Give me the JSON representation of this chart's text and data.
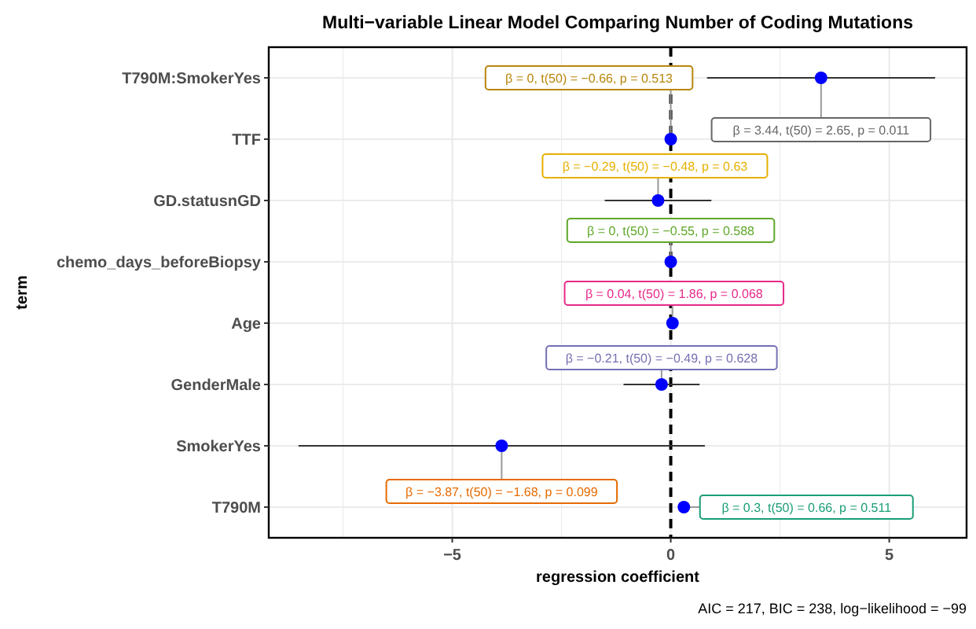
{
  "chart_data": {
    "type": "scatter",
    "title": "Multi−variable Linear Model Comparing Number of Coding Mutations",
    "xlabel": "regression coefficient",
    "ylabel": "term",
    "categories": [
      "T790M:SmokerYes",
      "TTF",
      "GD.statusnGD",
      "chemo_days_beforeBiopsy",
      "Age",
      "GenderMale",
      "SmokerYes",
      "T790M"
    ],
    "orientation": "horizontal",
    "series": [
      {
        "color": "#0000ff",
        "values": [
          3.44,
          0,
          -0.29,
          0,
          0.04,
          -0.21,
          -3.87,
          0.3
        ],
        "errors": [
          2.61,
          null,
          1.22,
          null,
          null,
          0.87,
          4.65,
          null
        ]
      }
    ],
    "xlim": [
      -9.2,
      6.77
    ],
    "xticks": [
      -5,
      0,
      5
    ],
    "grid": true,
    "marker": "circle",
    "ref_lines": [
      {
        "axis": "x",
        "value": 0,
        "line_style": "dashed",
        "color": "#000000"
      }
    ],
    "annotations": [
      {
        "text": "β = 3.44,  t(50) = 2.65,  p = 0.011",
        "x": 3.44,
        "y": "T790M:SmokerYes"
      },
      {
        "text": "β = 0,  t(50) = −0.66,  p = 0.513",
        "x": 0,
        "y": "TTF"
      },
      {
        "text": "β = −0.29,  t(50) = −0.48,  p = 0.63",
        "x": -0.29,
        "y": "GD.statusnGD"
      },
      {
        "text": "β = 0,  t(50) = −0.55,  p = 0.588",
        "x": 0,
        "y": "chemo_days_beforeBiopsy"
      },
      {
        "text": "β = 0.04,  t(50) = 1.86,  p = 0.068",
        "x": 0.04,
        "y": "Age"
      },
      {
        "text": "β = −0.21,  t(50) = −0.49,  p = 0.628",
        "x": -0.21,
        "y": "GenderMale"
      },
      {
        "text": "β = −3.87,  t(50) = −1.68,  p = 0.099",
        "x": -3.87,
        "y": "SmokerYes"
      },
      {
        "text": "β = 0.3,  t(50) = 0.66,  p = 0.511",
        "x": 0.3,
        "y": "T790M"
      },
      "AIC = 217, BIC = 238, log−likelihood = −99"
    ]
  }
}
